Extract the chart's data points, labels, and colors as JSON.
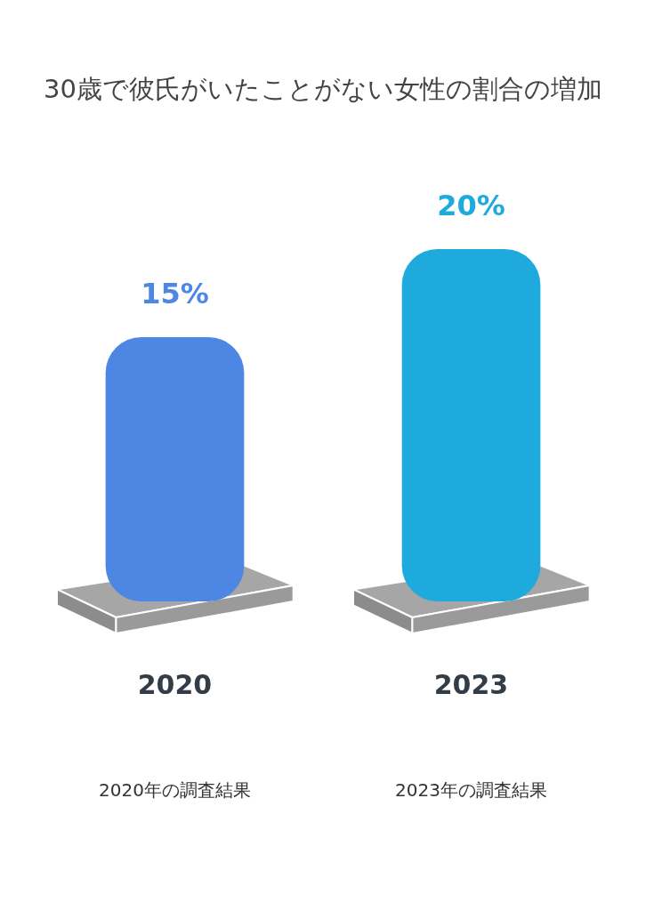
{
  "chart_data": {
    "type": "bar",
    "title": "30歳で彼氏がいたことがない女性の割合の増加",
    "categories": [
      "2020",
      "2023"
    ],
    "values": [
      15,
      20
    ],
    "colors": [
      "#4e86e4",
      "#1eaadc"
    ],
    "data_labels": true,
    "value_labels": [
      "15%",
      "20%"
    ],
    "annotations": [
      "2020年の調査結果",
      "2023年の調査結果"
    ],
    "grid": false,
    "legend": false
  }
}
